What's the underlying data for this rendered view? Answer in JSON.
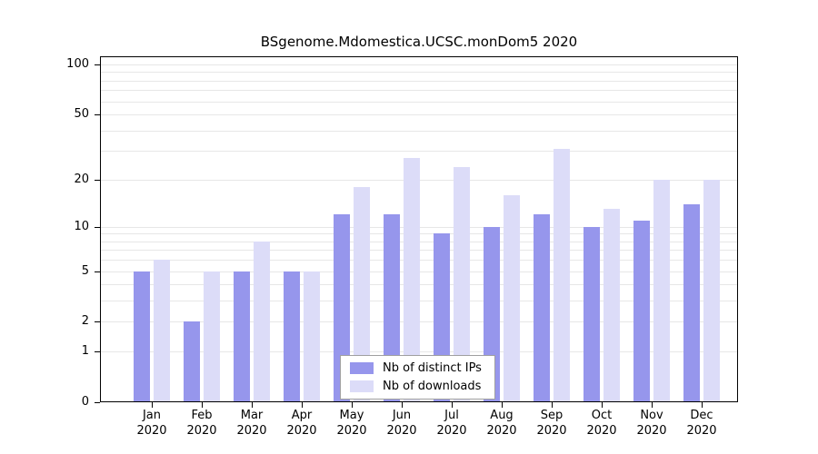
{
  "page": {
    "background": "#ffffff"
  },
  "chart_data": {
    "type": "bar",
    "title": "BSgenome.Mdomestica.UCSC.monDom5 2020",
    "categories": [
      "Jan",
      "Feb",
      "Mar",
      "Apr",
      "May",
      "Jun",
      "Jul",
      "Aug",
      "Sep",
      "Oct",
      "Nov",
      "Dec"
    ],
    "category_year": "2020",
    "series": [
      {
        "name": "Nb of distinct IPs",
        "color": "#9696ec",
        "values": [
          5,
          2,
          5,
          5,
          12,
          12,
          9,
          10,
          12,
          10,
          11,
          14
        ]
      },
      {
        "name": "Nb of downloads",
        "color": "#dcdcf8",
        "values": [
          6,
          5,
          8,
          5,
          18,
          27,
          24,
          16,
          31,
          13,
          20,
          20
        ]
      }
    ],
    "y_ticks": [
      100,
      50,
      20,
      10,
      5,
      2,
      1,
      0
    ],
    "gridline_values": [
      1,
      2,
      3,
      4,
      5,
      6,
      7,
      8,
      9,
      10,
      20,
      30,
      40,
      50,
      60,
      70,
      80,
      90,
      100
    ],
    "scale": "log10(value+1)",
    "ylim": [
      0,
      112
    ],
    "grid": true,
    "legend": {
      "position": "bottom-center",
      "entries": [
        "Nb of distinct IPs",
        "Nb of downloads"
      ]
    },
    "colors": {
      "grid": "#e7e7e7",
      "axis": "#000000",
      "legend_border": "#a0a0a0"
    }
  }
}
